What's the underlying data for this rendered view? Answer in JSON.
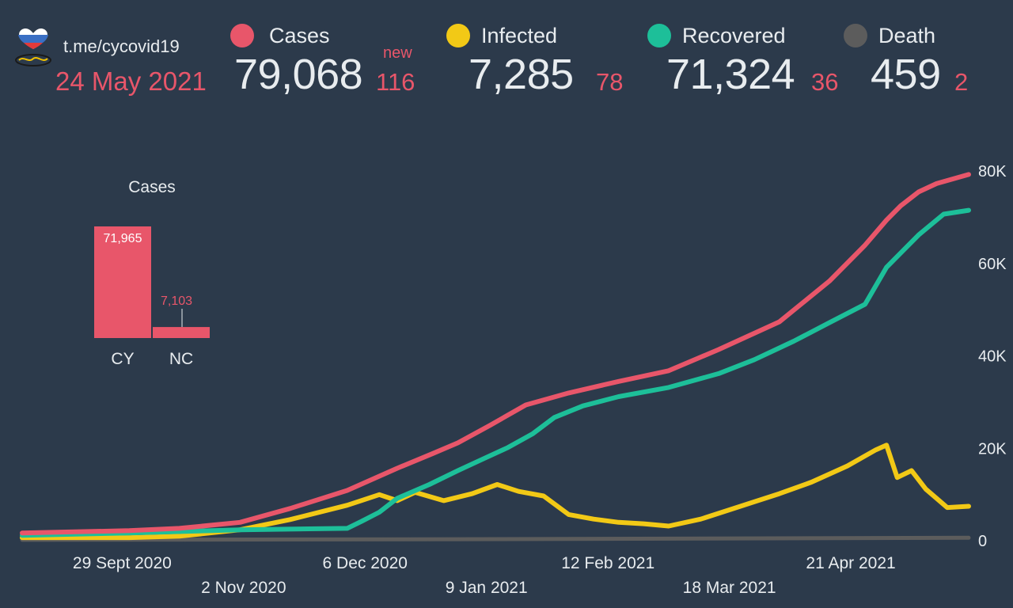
{
  "header": {
    "channel": "t.me/cycovid19",
    "date": "24 May 2021",
    "new_label": "new",
    "stats": [
      {
        "label": "Cases",
        "value": "79,068",
        "delta": "116",
        "color": "#e8566a"
      },
      {
        "label": "Infected",
        "value": "7,285",
        "delta": "78",
        "color": "#f2c916"
      },
      {
        "label": "Recovered",
        "value": "71,324",
        "delta": "36",
        "color": "#1dbf99"
      },
      {
        "label": "Death",
        "value": "459",
        "delta": "2",
        "color": "#5c5c5c"
      }
    ]
  },
  "chart_data": [
    {
      "type": "bar",
      "title": "Cases",
      "categories": [
        "CY",
        "NC"
      ],
      "values": [
        71965,
        7103
      ],
      "data_labels": [
        "71,965",
        "7,103"
      ],
      "color": "#e8566a"
    },
    {
      "type": "line",
      "y_ticks": [
        "80K",
        "60K",
        "40K",
        "20K",
        "0"
      ],
      "y_tick_values": [
        80000,
        60000,
        40000,
        20000,
        0
      ],
      "ylim": [
        0,
        80000
      ],
      "x_tick_labels": [
        "29 Sept 2020",
        "2 Nov 2020",
        "6 Dec 2020",
        "9 Jan 2021",
        "12 Feb 2021",
        "18 Mar 2021",
        "21 Apr 2021"
      ],
      "x_tick_dates": [
        "2020-09-29",
        "2020-11-02",
        "2020-12-06",
        "2021-01-09",
        "2021-02-12",
        "2021-03-18",
        "2021-04-21"
      ],
      "xlim": [
        "2020-09-01",
        "2021-05-24"
      ],
      "grid": false,
      "series": [
        {
          "name": "Cases",
          "color": "#e8566a",
          "points": [
            [
              "2020-09-01",
              1500
            ],
            [
              "2020-10-01",
              2000
            ],
            [
              "2020-10-15",
              2500
            ],
            [
              "2020-11-01",
              3800
            ],
            [
              "2020-11-15",
              6800
            ],
            [
              "2020-12-01",
              10700
            ],
            [
              "2020-12-15",
              15500
            ],
            [
              "2020-12-25",
              18700
            ],
            [
              "2021-01-01",
              21000
            ],
            [
              "2021-01-10",
              24800
            ],
            [
              "2021-01-20",
              29200
            ],
            [
              "2021-02-01",
              31800
            ],
            [
              "2021-02-15",
              34300
            ],
            [
              "2021-03-01",
              36600
            ],
            [
              "2021-03-15",
              41200
            ],
            [
              "2021-04-01",
              47200
            ],
            [
              "2021-04-15",
              56000
            ],
            [
              "2021-04-25",
              63800
            ],
            [
              "2021-05-01",
              69200
            ],
            [
              "2021-05-05",
              72300
            ],
            [
              "2021-05-10",
              75300
            ],
            [
              "2021-05-15",
              77100
            ],
            [
              "2021-05-24",
              79068
            ]
          ]
        },
        {
          "name": "Recovered",
          "color": "#1dbf99",
          "points": [
            [
              "2020-09-01",
              1000
            ],
            [
              "2020-10-01",
              1500
            ],
            [
              "2020-11-01",
              2200
            ],
            [
              "2020-12-01",
              2500
            ],
            [
              "2020-12-05",
              4000
            ],
            [
              "2020-12-10",
              6000
            ],
            [
              "2020-12-15",
              9000
            ],
            [
              "2020-12-24",
              12000
            ],
            [
              "2021-01-01",
              15000
            ],
            [
              "2021-01-08",
              17500
            ],
            [
              "2021-01-15",
              20000
            ],
            [
              "2021-01-22",
              23000
            ],
            [
              "2021-01-28",
              26500
            ],
            [
              "2021-02-05",
              29000
            ],
            [
              "2021-02-15",
              31000
            ],
            [
              "2021-03-01",
              33000
            ],
            [
              "2021-03-15",
              36000
            ],
            [
              "2021-03-25",
              39000
            ],
            [
              "2021-04-05",
              43000
            ],
            [
              "2021-04-15",
              47000
            ],
            [
              "2021-04-25",
              51000
            ],
            [
              "2021-05-01",
              59000
            ],
            [
              "2021-05-10",
              66000
            ],
            [
              "2021-05-17",
              70500
            ],
            [
              "2021-05-24",
              71324
            ]
          ]
        },
        {
          "name": "Infected",
          "color": "#f2c916",
          "points": [
            [
              "2020-09-01",
              500
            ],
            [
              "2020-10-01",
              500
            ],
            [
              "2020-10-15",
              800
            ],
            [
              "2020-11-01",
              2200
            ],
            [
              "2020-11-15",
              4400
            ],
            [
              "2020-12-01",
              7500
            ],
            [
              "2020-12-10",
              9800
            ],
            [
              "2020-12-15",
              8500
            ],
            [
              "2020-12-20",
              10300
            ],
            [
              "2020-12-28",
              8500
            ],
            [
              "2021-01-05",
              10000
            ],
            [
              "2021-01-12",
              12000
            ],
            [
              "2021-01-18",
              10500
            ],
            [
              "2021-01-25",
              9500
            ],
            [
              "2021-02-01",
              5500
            ],
            [
              "2021-02-08",
              4500
            ],
            [
              "2021-02-15",
              3800
            ],
            [
              "2021-02-22",
              3500
            ],
            [
              "2021-03-01",
              3000
            ],
            [
              "2021-03-10",
              4500
            ],
            [
              "2021-03-20",
              7000
            ],
            [
              "2021-04-01",
              10000
            ],
            [
              "2021-04-10",
              12500
            ],
            [
              "2021-04-20",
              16000
            ],
            [
              "2021-04-28",
              19500
            ],
            [
              "2021-05-01",
              20500
            ],
            [
              "2021-05-04",
              13500
            ],
            [
              "2021-05-08",
              15000
            ],
            [
              "2021-05-12",
              11000
            ],
            [
              "2021-05-18",
              7000
            ],
            [
              "2021-05-24",
              7285
            ]
          ]
        },
        {
          "name": "Death",
          "color": "#5c5c5c",
          "points": [
            [
              "2020-09-01",
              20
            ],
            [
              "2021-01-01",
              150
            ],
            [
              "2021-05-24",
              459
            ]
          ]
        }
      ]
    }
  ]
}
